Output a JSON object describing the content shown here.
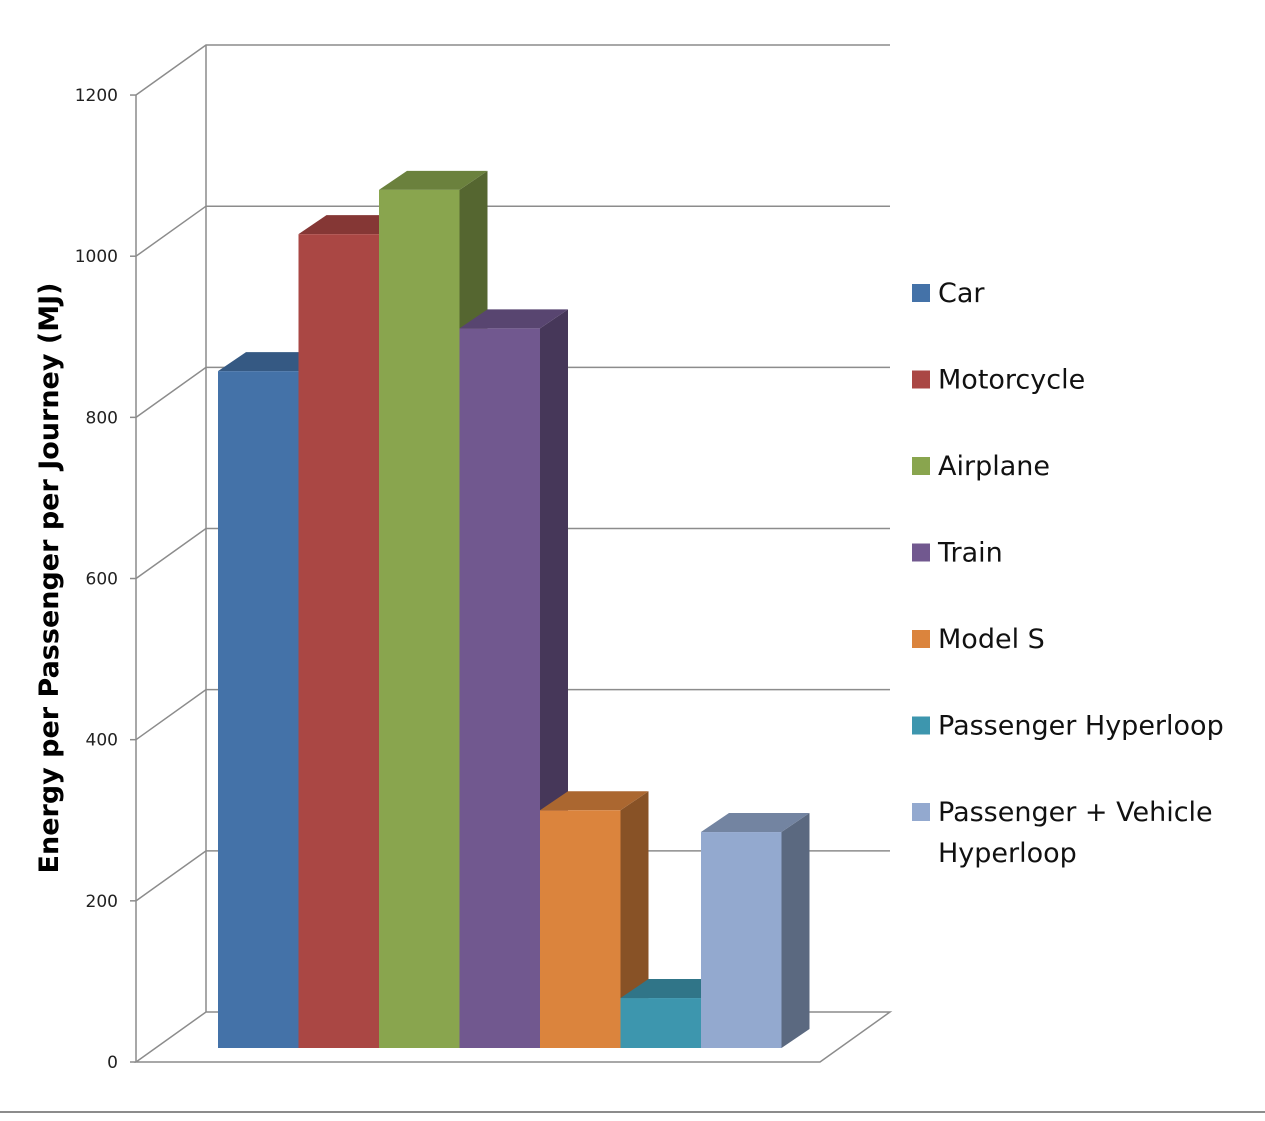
{
  "chart_data": {
    "type": "bar",
    "categories": [
      "Car",
      "Motorcycle",
      "Airplane",
      "Train",
      "Model S",
      "Passenger Hyperloop",
      "Passenger + Vehicle Hyperloop"
    ],
    "values": [
      840,
      1010,
      1065,
      893,
      295,
      62,
      268
    ],
    "colors": [
      "#4472A8",
      "#AA4744",
      "#89A54E",
      "#71588F",
      "#DB843D",
      "#3D96AE",
      "#93A9CF"
    ],
    "xlabel": "",
    "ylabel": "Energy per Passenger per Journey (MJ)",
    "ylim": [
      0,
      1200
    ],
    "yticks": [
      0,
      200,
      400,
      600,
      800,
      1000,
      1200
    ],
    "legend": {
      "position": "right",
      "entries": [
        "Car",
        "Motorcycle",
        "Airplane",
        "Train",
        "Model S",
        "Passenger Hyperloop",
        "Passenger + Vehicle Hyperloop"
      ]
    },
    "grid": true,
    "style": "3d-clustered-column"
  }
}
